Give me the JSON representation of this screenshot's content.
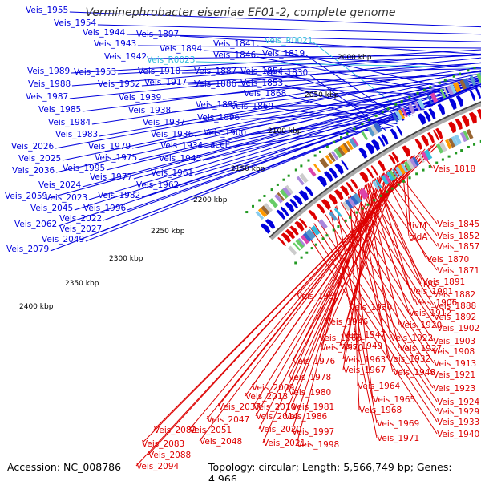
{
  "title": "Verminephrobacter eiseniae EF01-2, complete genome",
  "footer": {
    "accession": "Accession: NC_008786",
    "summary": "Topology: circular; Length: 5,566,749 bp; Genes: 4,966"
  },
  "colors": {
    "forward_gene": "#0000dd",
    "reverse_gene": "#dd0000",
    "rna_gene": "#33bbdd",
    "backbone": "#777777",
    "tick_dot": "#229922"
  },
  "ticks": [
    "2000 kbp",
    "2050 kbp",
    "2100 kbp",
    "2150 kbp",
    "2200 kbp",
    "2250 kbp",
    "2300 kbp",
    "2350 kbp",
    "2400 kbp"
  ],
  "forward_labels": [
    "Veis_1955",
    "Veis_1954",
    "Veis_1944",
    "Veis_1943",
    "Veis_1942",
    "Veis_1897",
    "Veis_1894",
    "Veis_R0023",
    "Veis_1841",
    "Veis_1846",
    "Veis_R0021",
    "Veis_1819",
    "Veis_1989",
    "Veis_1953",
    "Veis_1918",
    "Veis_1887",
    "Veis_1854",
    "Veis_1830",
    "Veis_1988",
    "Veis_1952",
    "Veis_1917",
    "Veis_1886",
    "Veis_1853",
    "Veis_1987",
    "Veis_1939",
    "Veis_1868",
    "Veis_1985",
    "Veis_1938",
    "Veis_1895",
    "Veis_1869",
    "Veis_1984",
    "Veis_1937",
    "Veis_1896",
    "Veis_1983",
    "Veis_1936",
    "Veis_1900",
    "Veis_2026",
    "Veis_1979",
    "Veis_1934",
    "aceE",
    "Veis_2025",
    "Veis_1975",
    "Veis_1945",
    "Veis_2036",
    "Veis_1995",
    "Veis_1977",
    "Veis_1961",
    "Veis_2024",
    "Veis_1962",
    "Veis_2059",
    "Veis_2023",
    "Veis_1982",
    "Veis_2045",
    "Veis_1996",
    "Veis_2022",
    "Veis_2062",
    "Veis_2027",
    "Veis_2049",
    "Veis_2079"
  ],
  "reverse_labels": [
    "Veis_1818",
    "Veis_1845",
    "Veis_1852",
    "Veis_1857",
    "livM",
    "gldA",
    "Veis_1870",
    "Veis_1871",
    "Veis_1891",
    "livG",
    "Veis_1882",
    "Veis_1901",
    "Veis_1950",
    "Veis_1906",
    "Veis_1888",
    "Veis_1930",
    "Veis_1892",
    "Veis_1912",
    "Veis_1946",
    "Veis_1920",
    "Veis_1902",
    "Veis_1947",
    "Veis_1922",
    "Veis_1903",
    "Veis_1966",
    "Veis_1949",
    "Veis_1927",
    "Veis_1908",
    "Veis_1970",
    "Veis_1932",
    "Veis_1913",
    "Veis_1963",
    "Veis_1976",
    "Veis_1967",
    "Veis_1948",
    "Veis_1921",
    "Veis_1978",
    "Veis_1964",
    "Veis_1923",
    "Veis_2009",
    "Veis_1980",
    "Veis_2013",
    "Veis_1965",
    "Veis_1924",
    "Veis_2037",
    "Veis_2010",
    "Veis_1981",
    "Veis_1968",
    "Veis_1929",
    "Veis_2047",
    "Veis_2014",
    "Veis_1986",
    "Veis_1969",
    "Veis_1933",
    "Veis_2082",
    "Veis_2051",
    "Veis_2020",
    "Veis_1997",
    "Veis_1971",
    "Veis_1940",
    "Veis_2083",
    "Veis_2048",
    "Veis_2021",
    "Veis_1998",
    "Veis_2088",
    "Veis_2094"
  ]
}
